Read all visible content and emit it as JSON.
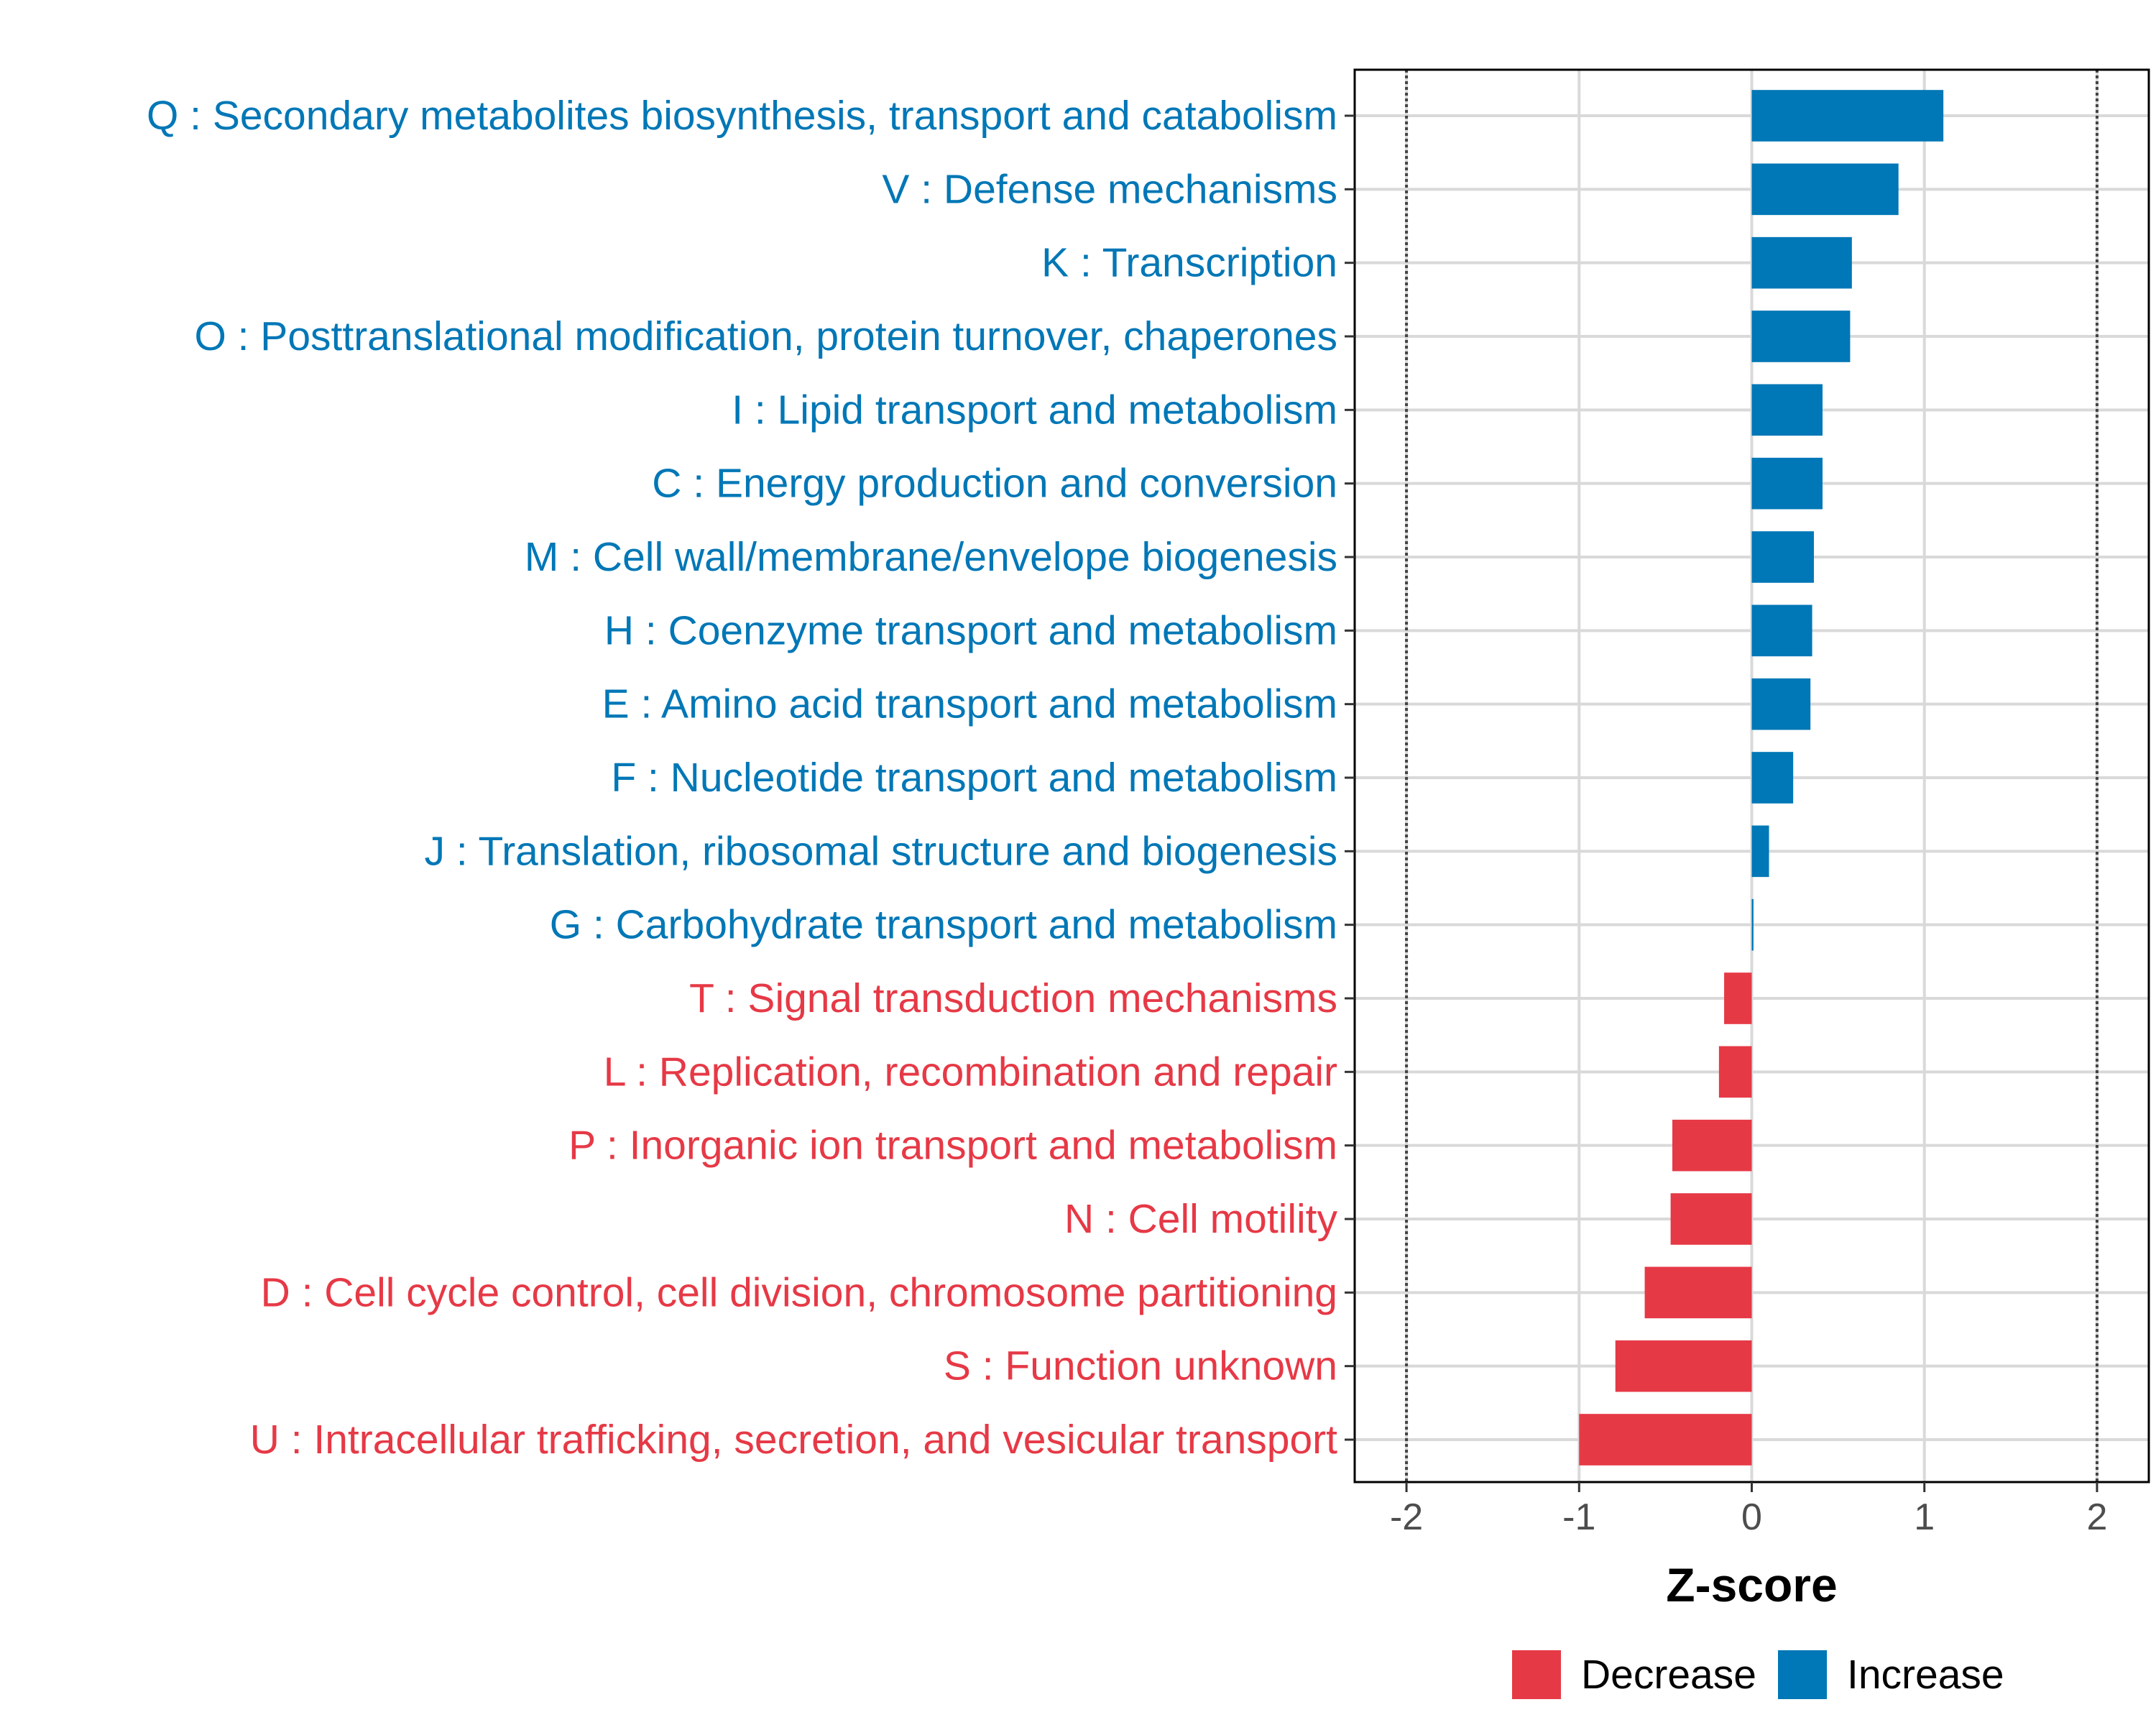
{
  "chart_data": {
    "type": "bar",
    "orientation": "horizontal",
    "xlabel": "Z-score",
    "xlim": [
      -2.3,
      2.3
    ],
    "xticks": [
      -2,
      -1,
      0,
      1,
      2
    ],
    "xtick_labels": [
      "-2",
      "-1",
      "0",
      "1",
      "2"
    ],
    "reference_lines": [
      -2,
      2
    ],
    "categories": [
      "Q : Secondary metabolites biosynthesis, transport and catabolism",
      "V : Defense mechanisms",
      "K : Transcription",
      "O : Posttranslational modification, protein turnover, chaperones",
      "I : Lipid transport and metabolism",
      "C : Energy production and conversion",
      "M : Cell wall/membrane/envelope biogenesis",
      "H : Coenzyme transport and metabolism",
      "E : Amino acid transport and metabolism",
      "F : Nucleotide transport and metabolism",
      "J : Translation, ribosomal structure and biogenesis",
      "G : Carbohydrate transport and metabolism",
      "T : Signal transduction mechanisms",
      "L : Replication, recombination and repair",
      "P : Inorganic ion transport and metabolism",
      "N : Cell motility",
      "D : Cell cycle control, cell division, chromosome partitioning",
      "S : Function unknown",
      "U : Intracellular trafficking, secretion, and vesicular transport"
    ],
    "values": [
      1.11,
      0.85,
      0.58,
      0.57,
      0.41,
      0.41,
      0.36,
      0.35,
      0.34,
      0.24,
      0.1,
      0.01,
      -0.16,
      -0.19,
      -0.46,
      -0.47,
      -0.62,
      -0.79,
      -1.0
    ],
    "groups": [
      "Increase",
      "Increase",
      "Increase",
      "Increase",
      "Increase",
      "Increase",
      "Increase",
      "Increase",
      "Increase",
      "Increase",
      "Increase",
      "Increase",
      "Decrease",
      "Decrease",
      "Decrease",
      "Decrease",
      "Decrease",
      "Decrease",
      "Decrease"
    ],
    "legend": [
      {
        "label": "Decrease",
        "color": "#e63946"
      },
      {
        "label": "Increase",
        "color": "#0077b6"
      }
    ],
    "legend_position": "bottom"
  }
}
